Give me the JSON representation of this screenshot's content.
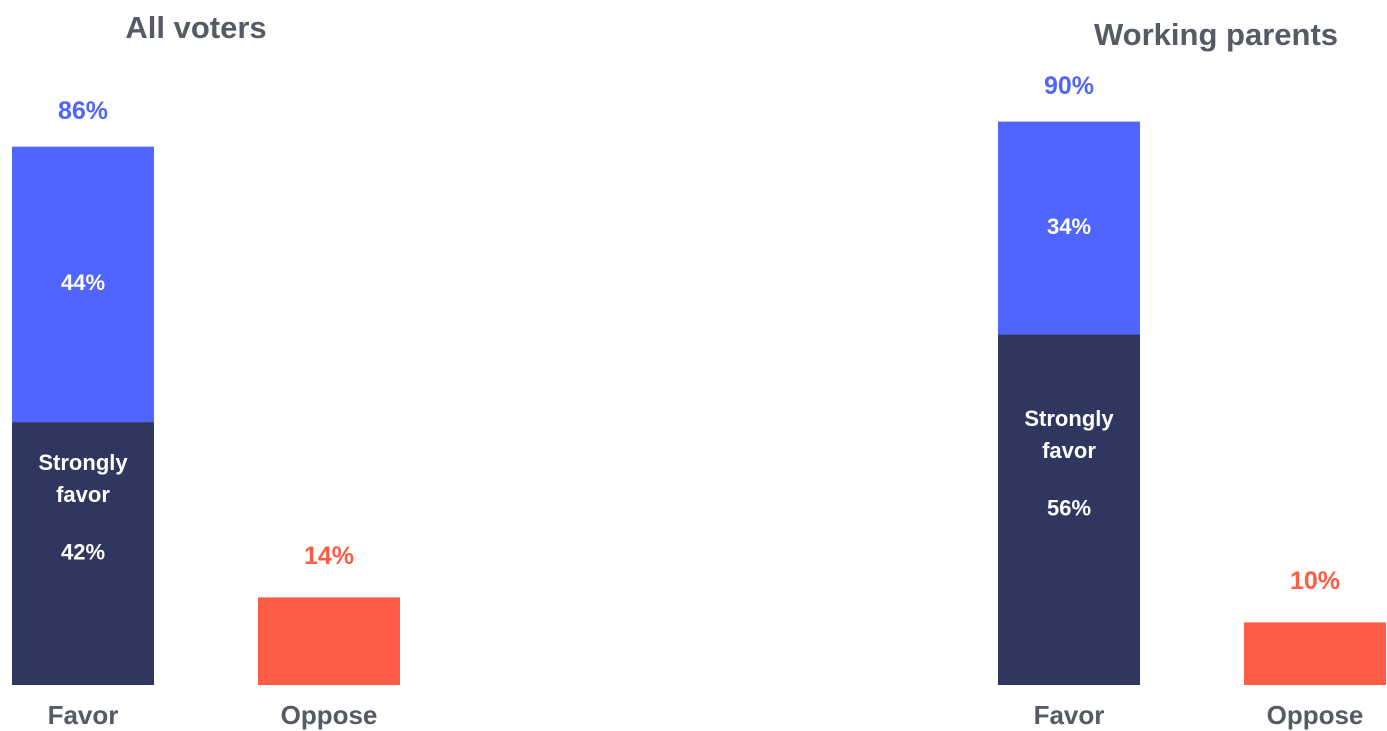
{
  "chart_data": [
    {
      "type": "bar",
      "title": "All voters",
      "categories": [
        "Favor",
        "Oppose"
      ],
      "ylim": [
        0,
        100
      ],
      "series": [
        {
          "name": "Strongly favor",
          "color": "#2f365f",
          "values": [
            42,
            null
          ],
          "value_labels": [
            "42%",
            null
          ]
        },
        {
          "color": "#5065fe",
          "values": [
            44,
            null
          ],
          "value_labels": [
            "44%",
            null
          ]
        },
        {
          "color": "#ff5c45",
          "values": [
            null,
            14
          ],
          "value_labels": [
            null,
            "14%"
          ]
        }
      ],
      "totals": [
        86,
        null
      ],
      "total_labels": [
        "86%",
        null
      ]
    },
    {
      "type": "bar",
      "title": "Working parents",
      "categories": [
        "Favor",
        "Oppose"
      ],
      "ylim": [
        0,
        100
      ],
      "series": [
        {
          "name": "Strongly favor",
          "color": "#2f365f",
          "values": [
            56,
            null
          ],
          "value_labels": [
            "56%",
            null
          ]
        },
        {
          "color": "#5065fe",
          "values": [
            34,
            null
          ],
          "value_labels": [
            "34%",
            null
          ]
        },
        {
          "color": "#ff5c45",
          "values": [
            null,
            10
          ],
          "value_labels": [
            null,
            "10%"
          ]
        }
      ],
      "totals": [
        90,
        null
      ],
      "total_labels": [
        "90%",
        null
      ]
    }
  ]
}
